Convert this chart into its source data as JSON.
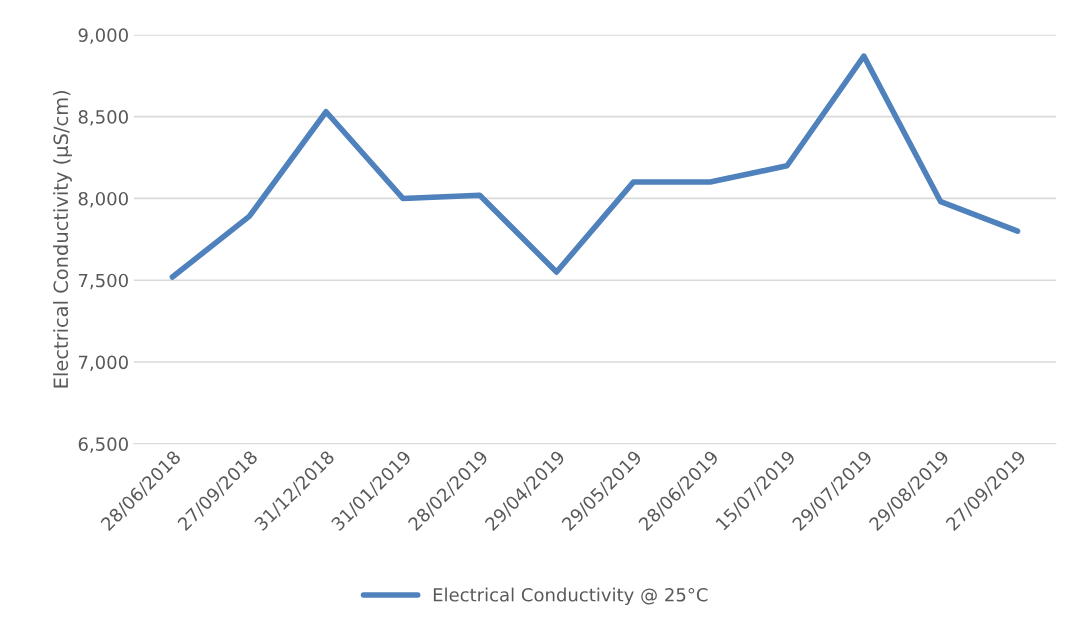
{
  "chart_data": {
    "type": "line",
    "ylabel": "Electrical Conductivity (µS/cm)",
    "categories": [
      "28/06/2018",
      "27/09/2018",
      "31/12/2018",
      "31/01/2019",
      "28/02/2019",
      "29/04/2019",
      "29/05/2019",
      "28/06/2019",
      "15/07/2019",
      "29/07/2019",
      "29/08/2019",
      "27/09/2019"
    ],
    "series": [
      {
        "name": "Electrical Conductivity @ 25°C",
        "color": "#4f81bd",
        "values": [
          7520,
          7890,
          8530,
          8000,
          8020,
          7550,
          8100,
          8100,
          8200,
          8870,
          7980,
          7800
        ]
      }
    ],
    "ylim": [
      6500,
      9000
    ],
    "yticks": [
      {
        "value": 6500,
        "label": "6,500"
      },
      {
        "value": 7000,
        "label": "7,000"
      },
      {
        "value": 7500,
        "label": "7,500"
      },
      {
        "value": 8000,
        "label": "8,000"
      },
      {
        "value": 8500,
        "label": "8,500"
      },
      {
        "value": 9000,
        "label": "9,000"
      }
    ],
    "grid": "y",
    "legend": "bottom",
    "marker": "none",
    "line_style": "solid"
  }
}
